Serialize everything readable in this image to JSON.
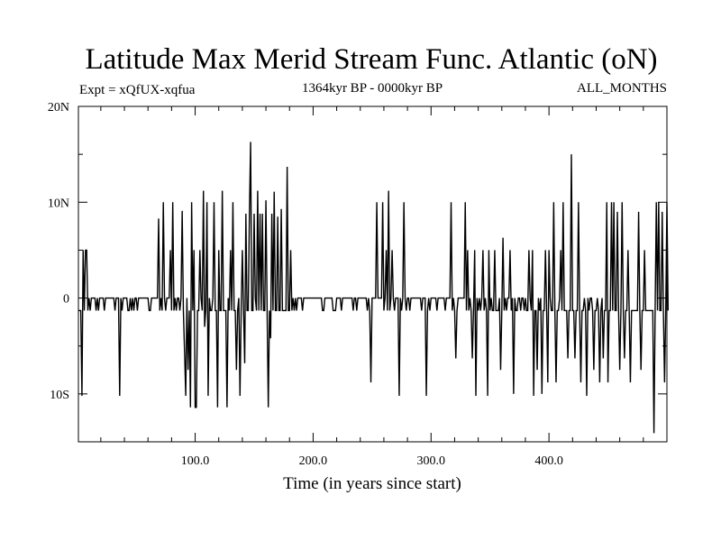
{
  "chart_data": {
    "type": "line",
    "title": "Latitude Max Merid Stream Func. Atlantic (oN)",
    "subtitle_left": "Expt = xQfUX-xqfua",
    "subtitle_center": "1364kyr BP - 0000kyr BP",
    "subtitle_right": "ALL_MONTHS",
    "xlabel": "Time (in years since start)",
    "ylabel": "",
    "xlim": [
      1,
      500
    ],
    "ylim": [
      -15,
      20
    ],
    "x_ticks": [
      100,
      200,
      300,
      400
    ],
    "x_tick_labels": [
      "100.0",
      "200.0",
      "300.0",
      "400.0"
    ],
    "y_ticks": [
      20,
      10,
      0,
      -10
    ],
    "y_tick_labels": [
      "20N",
      "10N",
      "0",
      "10S"
    ],
    "grid": false,
    "series": [
      {
        "x_start": 1,
        "x_step": 1,
        "values": [
          -1.3,
          -1.3,
          -1.3,
          -10.2,
          5,
          -1.3,
          5,
          5,
          -1.3,
          0,
          -1.3,
          0,
          0,
          0,
          0,
          -1.3,
          0,
          -1.3,
          0,
          0,
          0,
          0,
          -1.3,
          0,
          0,
          0,
          0,
          0,
          0,
          0,
          0,
          -1.3,
          0,
          0,
          0,
          -10.2,
          0,
          -1.3,
          0,
          0,
          0,
          0,
          -1.3,
          -1.3,
          0,
          -1.3,
          0,
          -1.3,
          0,
          0,
          -1.3,
          0,
          0,
          0,
          0,
          0,
          0,
          0,
          0,
          0,
          -1.3,
          -1.3,
          0,
          0,
          0,
          0,
          0,
          0,
          8.3,
          -1.3,
          0,
          -1.3,
          10,
          0,
          -1.3,
          0,
          0,
          0,
          5,
          -1.3,
          10,
          -1.3,
          0,
          -1.3,
          0,
          0,
          -1.3,
          0,
          9.1,
          -1.3,
          -5.6,
          -10.2,
          0,
          -7.5,
          -1.3,
          -11.4,
          10,
          -1.3,
          5,
          -11.4,
          -11.4,
          -1.3,
          -1.3,
          5,
          0,
          -1.3,
          11.2,
          -3,
          -1.3,
          10,
          -10.2,
          0,
          -1.3,
          -1.3,
          0,
          10,
          -1.3,
          -1.3,
          -11.4,
          5,
          -1.3,
          -1.3,
          11.2,
          -1.3,
          -1.3,
          -1.3,
          -11.4,
          0,
          -1.3,
          5,
          -1.3,
          10,
          -1.3,
          -1.3,
          -7.5,
          -1.3,
          0,
          -10.2,
          -1.3,
          5,
          -1.3,
          -6.8,
          8.8,
          -1.3,
          -1.3,
          8.8,
          16.3,
          -1.3,
          -1.3,
          8.8,
          0,
          -1.3,
          11.2,
          -1.3,
          8.8,
          -1.3,
          8.8,
          -1.3,
          -1.3,
          10.2,
          -1.3,
          -11.4,
          -1.3,
          -4.2,
          8.8,
          -1.3,
          11.1,
          -1.3,
          -1.3,
          8.5,
          -1.3,
          -1.3,
          9.3,
          -1.3,
          -1.3,
          -1.3,
          -1.3,
          13.7,
          -1.3,
          -1.3,
          5,
          -1.3,
          0,
          -1.3,
          0,
          -1.3,
          0,
          0,
          0,
          0,
          -1.3,
          0,
          0,
          0,
          0,
          0,
          0,
          0,
          0,
          0,
          0,
          0,
          0,
          0,
          0,
          0,
          0,
          -1.3,
          -1.3,
          0,
          0,
          0,
          0,
          0,
          0,
          0,
          -1.3,
          -1.3,
          -1.3,
          0,
          0,
          0,
          0,
          -1.3,
          0,
          0,
          0,
          0,
          0,
          0,
          0,
          0,
          0,
          -1.3,
          0,
          0,
          -1.3,
          0,
          0,
          0,
          0,
          0,
          0,
          0,
          0,
          -1.3,
          0,
          -1.3,
          -8.8,
          0,
          0,
          0,
          0,
          10,
          0,
          0,
          0,
          0,
          10,
          -1.3,
          0,
          5,
          -1.3,
          11.2,
          -1.3,
          0,
          5,
          0,
          -1.3,
          0,
          0,
          0,
          -10.2,
          0,
          -1.3,
          0,
          10,
          0,
          -1.3,
          0,
          0,
          -1.3,
          0,
          0,
          0,
          0,
          0,
          0,
          0,
          0,
          0,
          -1.3,
          0,
          0,
          0,
          -10.2,
          -1.3,
          0,
          -1.3,
          0,
          0,
          0,
          0,
          0,
          -1.3,
          0,
          0,
          0,
          0,
          0,
          0,
          -1.3,
          0,
          0,
          0,
          0,
          10,
          -1.3,
          0,
          -1.3,
          -6.3,
          -1.3,
          0,
          0,
          0,
          0,
          0,
          0,
          10,
          -1.3,
          5,
          -1.3,
          0,
          -1.3,
          -6.3,
          -1.3,
          5,
          -10.2,
          0,
          -1.3,
          0,
          -1.3,
          0,
          5,
          -1.3,
          0,
          -1.3,
          -10.2,
          5,
          -1.3,
          0,
          -1.3,
          -1.3,
          5,
          -1.3,
          -1.3,
          -1.3,
          0,
          -7.5,
          -1.3,
          6.3,
          -1.3,
          0,
          -1.3,
          0,
          0,
          5,
          -1.3,
          0,
          -10,
          0,
          -1.3,
          -1.3,
          0,
          0,
          -1.3,
          0,
          0,
          -1.3,
          0,
          -1.3,
          -1.3,
          5,
          0,
          -1.3,
          5,
          -10.2,
          -1.3,
          -1.3,
          -7.5,
          0,
          -1.3,
          0,
          -10,
          -1.3,
          -1.3,
          5,
          -1.3,
          -8.8,
          5,
          0,
          -1.3,
          -1.3,
          10,
          -1.3,
          -8.8,
          -1.3,
          -1.3,
          0,
          5,
          -1.3,
          10,
          -1.3,
          -1.3,
          -1.3,
          -6.3,
          -1.3,
          -1.3,
          15,
          -1.3,
          -1.3,
          -6.3,
          -1.3,
          -1.3,
          10,
          -1.3,
          -8.8,
          -1.3,
          -1.3,
          0,
          -1.3,
          -10.2,
          0,
          -1.3,
          0,
          0,
          -1.3,
          -7.5,
          -1.3,
          -1.3,
          0,
          -1.3,
          -8.8,
          -1.3,
          0,
          -6.3,
          -1.3,
          -1.3,
          10,
          -8.8,
          -1.3,
          -1.3,
          10,
          -1.3,
          10,
          -1.3,
          -1.3,
          9,
          -1.3,
          -7.5,
          -1.3,
          10,
          -1.3,
          -6.3,
          -1.3,
          -1.3,
          5,
          -1.3,
          -8.8,
          -1.3,
          -1.3,
          -1.3,
          -1.3,
          -1.3,
          -1.3,
          9,
          -1.3,
          -7.5,
          -1.3,
          -1.3,
          5,
          -1.3,
          -1.3,
          -1.3,
          -1.3,
          -1.3,
          -1.3,
          -1.3,
          -14.1,
          -1.3,
          10,
          -1.3,
          10,
          -1.3,
          -1.3,
          9,
          -1.3,
          -8.8,
          -1.3,
          10,
          -1.3
        ]
      }
    ]
  }
}
